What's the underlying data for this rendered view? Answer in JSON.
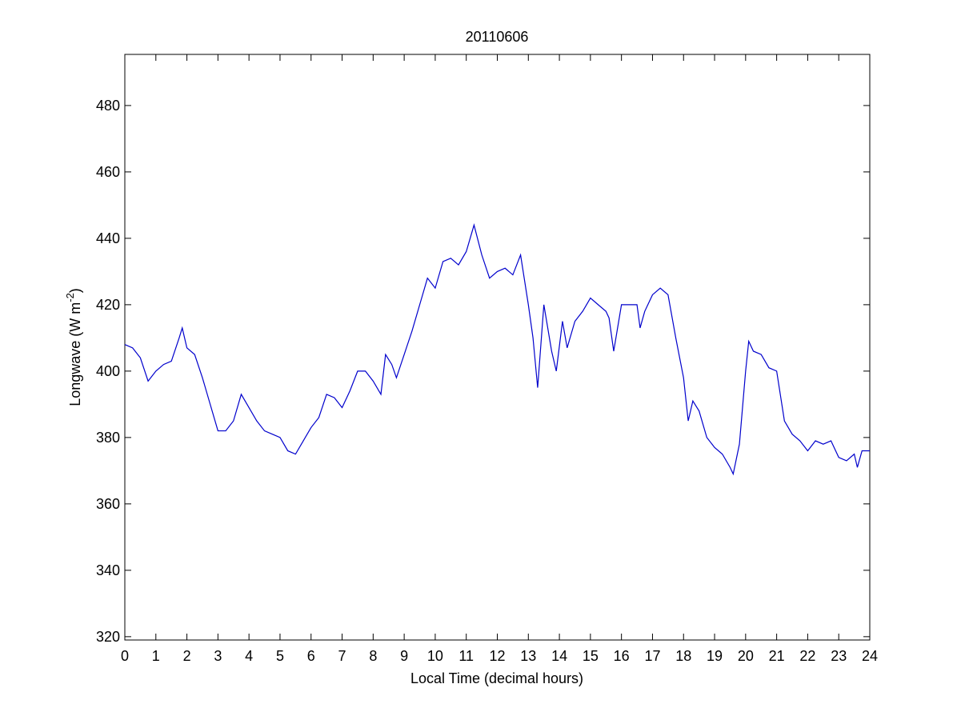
{
  "chart_data": {
    "type": "line",
    "title": "20110606",
    "xlabel": "Local Time (decimal hours)",
    "ylabel": {
      "text": "Longwave (W m",
      "sup": "-2",
      "end": ")"
    },
    "x": [
      0,
      0.25,
      0.5,
      0.75,
      1,
      1.25,
      1.5,
      1.75,
      1.85,
      2,
      2.25,
      2.5,
      2.75,
      3,
      3.25,
      3.5,
      3.75,
      4,
      4.25,
      4.5,
      4.75,
      5,
      5.25,
      5.5,
      5.75,
      6,
      6.25,
      6.5,
      6.75,
      7,
      7.25,
      7.5,
      7.75,
      8,
      8.25,
      8.4,
      8.6,
      8.75,
      9,
      9.25,
      9.5,
      9.75,
      10,
      10.25,
      10.5,
      10.75,
      11,
      11.25,
      11.5,
      11.75,
      12,
      12.25,
      12.5,
      12.75,
      13,
      13.15,
      13.3,
      13.5,
      13.75,
      13.9,
      14.1,
      14.25,
      14.5,
      14.75,
      15,
      15.25,
      15.5,
      15.6,
      15.75,
      16,
      16.25,
      16.5,
      16.6,
      16.75,
      17,
      17.25,
      17.5,
      17.75,
      18,
      18.15,
      18.3,
      18.5,
      18.75,
      19,
      19.25,
      19.5,
      19.6,
      19.8,
      20,
      20.1,
      20.25,
      20.5,
      20.75,
      21,
      21.25,
      21.5,
      21.75,
      22,
      22.25,
      22.5,
      22.75,
      23,
      23.25,
      23.5,
      23.6,
      23.75,
      24
    ],
    "series": [
      {
        "name": "Longwave",
        "color": "#0000cc",
        "values": [
          408,
          407,
          404,
          397,
          400,
          402,
          403,
          410,
          413,
          407,
          405,
          398,
          390,
          382,
          382,
          385,
          393,
          389,
          385,
          382,
          381,
          380,
          376,
          375,
          379,
          383,
          386,
          393,
          392,
          389,
          394,
          400,
          400,
          397,
          393,
          405,
          402,
          398,
          405,
          412,
          420,
          428,
          425,
          433,
          434,
          432,
          436,
          444,
          435,
          428,
          430,
          431,
          429,
          435,
          420,
          410,
          395,
          420,
          406,
          400,
          415,
          407,
          415,
          418,
          422,
          420,
          418,
          416,
          406,
          420,
          420,
          420,
          413,
          418,
          423,
          425,
          423,
          410,
          398,
          385,
          391,
          388,
          380,
          377,
          375,
          371,
          369,
          378,
          400,
          409,
          406,
          405,
          401,
          400,
          385,
          381,
          379,
          376,
          379,
          378,
          379,
          374,
          373,
          375,
          371,
          376,
          376
        ]
      }
    ],
    "xlim": [
      0,
      24
    ],
    "ylim": [
      319,
      495.4
    ],
    "xticks": [
      0,
      1,
      2,
      3,
      4,
      5,
      6,
      7,
      8,
      9,
      10,
      11,
      12,
      13,
      14,
      15,
      16,
      17,
      18,
      19,
      20,
      21,
      22,
      23,
      24
    ],
    "yticks": [
      320,
      340,
      360,
      380,
      400,
      420,
      440,
      460,
      480
    ]
  }
}
